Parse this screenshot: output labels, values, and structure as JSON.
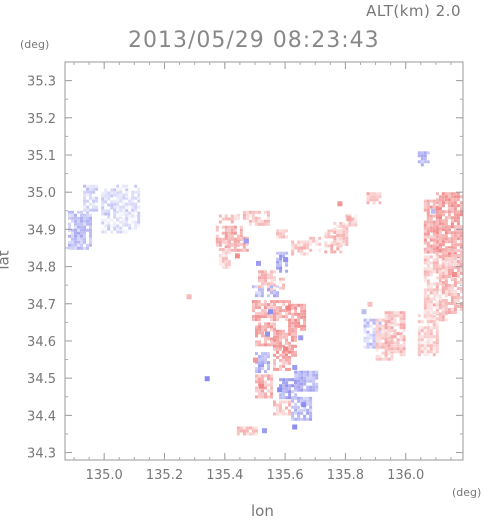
{
  "header": {
    "altitude": "ALT(km) 2.0",
    "datetime": "2013/05/29 08:23:43"
  },
  "chart_data": {
    "type": "heatmap",
    "title": "2013/05/29 08:23:43",
    "subtitle": "ALT(km) 2.0",
    "xlabel": "lon",
    "ylabel": "lat",
    "x_unit": "(deg)",
    "y_unit": "(deg)",
    "xlim": [
      134.87,
      136.19
    ],
    "ylim": [
      34.28,
      35.35
    ],
    "x_ticks": [
      135.0,
      135.2,
      135.4,
      135.6,
      135.8,
      136.0
    ],
    "x_tick_labels": [
      "135.0",
      "135.2",
      "135.4",
      "135.6",
      "135.8",
      "136.0"
    ],
    "y_ticks": [
      34.3,
      34.4,
      34.5,
      34.6,
      34.7,
      34.8,
      34.9,
      35.0,
      35.1,
      35.2,
      35.3
    ],
    "y_tick_labels": [
      "34.3",
      "34.4",
      "34.5",
      "34.6",
      "34.7",
      "34.8",
      "34.9",
      "35.0",
      "35.1",
      "35.2",
      "35.3"
    ],
    "colors": {
      "positive": "#f28b8b",
      "negative": "#8c8cf2",
      "frame": "#999999"
    },
    "regions": [
      {
        "lon": [
          134.88,
          134.95
        ],
        "lat": [
          34.85,
          34.95
        ],
        "value": -0.35
      },
      {
        "lon": [
          134.93,
          134.97
        ],
        "lat": [
          34.95,
          35.02
        ],
        "value": -0.25
      },
      {
        "lon": [
          134.99,
          135.07
        ],
        "lat": [
          34.89,
          35.01
        ],
        "value": -0.2
      },
      {
        "lon": [
          135.03,
          135.11
        ],
        "lat": [
          34.9,
          35.02
        ],
        "value": -0.15
      },
      {
        "lon": [
          135.38,
          135.43
        ],
        "lat": [
          34.92,
          34.94
        ],
        "value": 0.3
      },
      {
        "lon": [
          135.44,
          135.47
        ],
        "lat": [
          34.93,
          34.95
        ],
        "value": 0.35
      },
      {
        "lon": [
          135.48,
          135.54
        ],
        "lat": [
          34.91,
          34.95
        ],
        "value": 0.3
      },
      {
        "lon": [
          135.37,
          135.45
        ],
        "lat": [
          34.86,
          34.91
        ],
        "value": 0.45
      },
      {
        "lon": [
          135.4,
          135.47
        ],
        "lat": [
          34.84,
          34.88
        ],
        "value": 0.4
      },
      {
        "lon": [
          135.38,
          135.41
        ],
        "lat": [
          34.8,
          34.85
        ],
        "value": 0.25
      },
      {
        "lon": [
          135.57,
          135.6
        ],
        "lat": [
          34.88,
          34.9
        ],
        "value": 0.3
      },
      {
        "lon": [
          135.57,
          135.6
        ],
        "lat": [
          34.79,
          34.84
        ],
        "value": -0.5
      },
      {
        "lon": [
          135.62,
          135.67
        ],
        "lat": [
          34.83,
          34.87
        ],
        "value": 0.3
      },
      {
        "lon": [
          135.68,
          135.71
        ],
        "lat": [
          34.84,
          34.88
        ],
        "value": 0.25
      },
      {
        "lon": [
          135.73,
          135.78
        ],
        "lat": [
          34.84,
          34.9
        ],
        "value": 0.35
      },
      {
        "lon": [
          135.76,
          135.8
        ],
        "lat": [
          34.86,
          34.92
        ],
        "value": 0.3
      },
      {
        "lon": [
          135.8,
          135.83
        ],
        "lat": [
          34.91,
          34.94
        ],
        "value": 0.25
      },
      {
        "lon": [
          135.51,
          135.56
        ],
        "lat": [
          34.74,
          34.79
        ],
        "value": 0.35
      },
      {
        "lon": [
          135.49,
          135.52
        ],
        "lat": [
          34.72,
          34.75
        ],
        "value": -0.35
      },
      {
        "lon": [
          135.54,
          135.57
        ],
        "lat": [
          34.72,
          34.75
        ],
        "value": -0.4
      },
      {
        "lon": [
          135.56,
          135.59
        ],
        "lat": [
          34.74,
          34.77
        ],
        "value": 0.25
      },
      {
        "lon": [
          135.49,
          135.54
        ],
        "lat": [
          34.66,
          34.71
        ],
        "value": 0.45
      },
      {
        "lon": [
          135.55,
          135.61
        ],
        "lat": [
          34.66,
          34.71
        ],
        "value": 0.4
      },
      {
        "lon": [
          135.61,
          135.66
        ],
        "lat": [
          34.63,
          34.7
        ],
        "value": 0.5
      },
      {
        "lon": [
          135.5,
          135.56
        ],
        "lat": [
          34.59,
          34.65
        ],
        "value": 0.45
      },
      {
        "lon": [
          135.56,
          135.63
        ],
        "lat": [
          34.56,
          34.63
        ],
        "value": 0.5
      },
      {
        "lon": [
          135.5,
          135.54
        ],
        "lat": [
          34.52,
          34.57
        ],
        "value": -0.45
      },
      {
        "lon": [
          135.56,
          135.61
        ],
        "lat": [
          34.52,
          34.56
        ],
        "value": 0.4
      },
      {
        "lon": [
          135.5,
          135.55
        ],
        "lat": [
          34.45,
          34.51
        ],
        "value": 0.4
      },
      {
        "lon": [
          135.58,
          135.63
        ],
        "lat": [
          34.45,
          34.5
        ],
        "value": -0.5
      },
      {
        "lon": [
          135.63,
          135.7
        ],
        "lat": [
          34.47,
          34.52
        ],
        "value": -0.45
      },
      {
        "lon": [
          135.56,
          135.61
        ],
        "lat": [
          34.4,
          34.44
        ],
        "value": 0.3
      },
      {
        "lon": [
          135.62,
          135.68
        ],
        "lat": [
          34.39,
          34.45
        ],
        "value": -0.4
      },
      {
        "lon": [
          135.44,
          135.5
        ],
        "lat": [
          34.35,
          34.37
        ],
        "value": 0.3
      },
      {
        "lon": [
          135.87,
          135.91
        ],
        "lat": [
          34.97,
          35.0
        ],
        "value": 0.35
      },
      {
        "lon": [
          135.86,
          135.91
        ],
        "lat": [
          34.58,
          34.66
        ],
        "value": -0.3
      },
      {
        "lon": [
          135.9,
          135.95
        ],
        "lat": [
          34.55,
          34.66
        ],
        "value": 0.3
      },
      {
        "lon": [
          135.93,
          135.99
        ],
        "lat": [
          34.56,
          34.68
        ],
        "value": 0.35
      },
      {
        "lon": [
          136.04,
          136.07
        ],
        "lat": [
          35.07,
          35.11
        ],
        "value": -0.4
      },
      {
        "lon": [
          136.06,
          136.11
        ],
        "lat": [
          34.84,
          34.98
        ],
        "value": 0.45
      },
      {
        "lon": [
          136.1,
          136.18
        ],
        "lat": [
          34.83,
          35.0
        ],
        "value": 0.5
      },
      {
        "lon": [
          136.06,
          136.13
        ],
        "lat": [
          34.66,
          34.83
        ],
        "value": 0.3
      },
      {
        "lon": [
          136.12,
          136.18
        ],
        "lat": [
          34.68,
          34.85
        ],
        "value": 0.35
      },
      {
        "lon": [
          136.04,
          136.1
        ],
        "lat": [
          34.56,
          34.68
        ],
        "value": 0.25
      }
    ],
    "speckles": [
      {
        "lon": 135.34,
        "lat": 34.5,
        "value": -0.7
      },
      {
        "lon": 135.53,
        "lat": 34.36,
        "value": -0.6
      },
      {
        "lon": 135.63,
        "lat": 34.37,
        "value": -0.7
      },
      {
        "lon": 135.86,
        "lat": 34.68,
        "value": -0.4
      },
      {
        "lon": 135.88,
        "lat": 34.7,
        "value": 0.35
      },
      {
        "lon": 135.81,
        "lat": 34.93,
        "value": 0.5
      },
      {
        "lon": 135.51,
        "lat": 34.81,
        "value": -0.6
      },
      {
        "lon": 135.6,
        "lat": 34.82,
        "value": -0.65
      },
      {
        "lon": 135.55,
        "lat": 34.68,
        "value": -0.7
      },
      {
        "lon": 135.65,
        "lat": 34.61,
        "value": -0.6
      },
      {
        "lon": 135.6,
        "lat": 34.58,
        "value": 0.7
      },
      {
        "lon": 135.52,
        "lat": 34.48,
        "value": 0.7
      },
      {
        "lon": 135.66,
        "lat": 34.43,
        "value": -0.7
      },
      {
        "lon": 135.58,
        "lat": 34.47,
        "value": -0.7
      },
      {
        "lon": 135.47,
        "lat": 34.87,
        "value": -0.6
      },
      {
        "lon": 135.44,
        "lat": 34.83,
        "value": 0.65
      },
      {
        "lon": 135.54,
        "lat": 34.62,
        "value": -0.65
      },
      {
        "lon": 135.61,
        "lat": 34.69,
        "value": 0.7
      },
      {
        "lon": 135.5,
        "lat": 34.55,
        "value": 0.6
      },
      {
        "lon": 135.63,
        "lat": 34.53,
        "value": -0.6
      },
      {
        "lon": 136.16,
        "lat": 34.78,
        "value": 0.65
      },
      {
        "lon": 136.09,
        "lat": 34.95,
        "value": -0.4
      },
      {
        "lon": 135.78,
        "lat": 34.97,
        "value": 0.6
      },
      {
        "lon": 135.28,
        "lat": 34.72,
        "value": 0.4
      }
    ]
  }
}
